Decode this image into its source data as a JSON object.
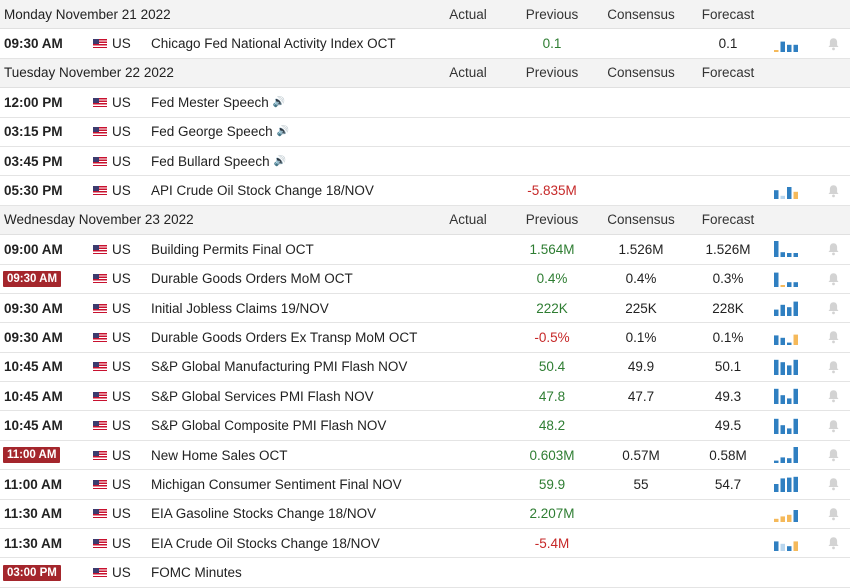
{
  "columns": {
    "actual": "Actual",
    "previous": "Previous",
    "consensus": "Consensus",
    "forecast": "Forecast"
  },
  "colors": {
    "bar_blue": "#2f7fc1",
    "bar_orange": "#f5b95a",
    "bar_light": "#b9d6ee",
    "badge": "#a4262c",
    "positive": "#2e7d32",
    "negative": "#c62828"
  },
  "rows": [
    {
      "kind": "header",
      "date": "Monday November 21 2022"
    },
    {
      "kind": "event",
      "time": "09:30 AM",
      "country": "US",
      "event": "Chicago Fed National Activity Index OCT",
      "previous": "0.1",
      "prev_tone": "pos",
      "forecast": "0.1",
      "bars": [
        0.1,
        0.65,
        0.45,
        0.45
      ],
      "bar_tones": [
        "o",
        "b",
        "b",
        "b"
      ]
    },
    {
      "kind": "header",
      "date": "Tuesday November 22 2022"
    },
    {
      "kind": "event",
      "time": "12:00 PM",
      "country": "US",
      "event": "Fed Mester Speech",
      "speech": true
    },
    {
      "kind": "event",
      "time": "03:15 PM",
      "country": "US",
      "event": "Fed George Speech",
      "speech": true
    },
    {
      "kind": "event",
      "time": "03:45 PM",
      "country": "US",
      "event": "Fed Bullard Speech",
      "speech": true
    },
    {
      "kind": "event",
      "time": "05:30 PM",
      "country": "US",
      "event": "API Crude Oil Stock Change 18/NOV",
      "previous": "-5.835M",
      "prev_tone": "neg",
      "bars": [
        0.55,
        0.2,
        0.75,
        0.45
      ],
      "bar_tones": [
        "b",
        "l",
        "b",
        "o"
      ],
      "bell": true
    },
    {
      "kind": "header",
      "date": "Wednesday November 23 2022"
    },
    {
      "kind": "event",
      "time": "09:00 AM",
      "country": "US",
      "event": "Building Permits Final OCT",
      "previous": "1.564M",
      "prev_tone": "pos",
      "consensus": "1.526M",
      "forecast": "1.526M",
      "bars": [
        1.0,
        0.3,
        0.25,
        0.25
      ],
      "bar_tones": [
        "b",
        "b",
        "b",
        "b"
      ],
      "bell": true
    },
    {
      "kind": "event",
      "time": "09:30 AM",
      "badge": true,
      "country": "US",
      "event": "Durable Goods Orders MoM OCT",
      "previous": "0.4%",
      "prev_tone": "pos",
      "consensus": "0.4%",
      "forecast": "0.3%",
      "bars": [
        0.9,
        0.1,
        0.3,
        0.3
      ],
      "bar_tones": [
        "b",
        "o",
        "b",
        "b"
      ],
      "bell": true
    },
    {
      "kind": "event",
      "time": "09:30 AM",
      "country": "US",
      "event": "Initial Jobless Claims 19/NOV",
      "previous": "222K",
      "prev_tone": "pos",
      "consensus": "225K",
      "forecast": "228K",
      "bars": [
        0.4,
        0.7,
        0.55,
        0.9
      ],
      "bar_tones": [
        "b",
        "b",
        "b",
        "b"
      ],
      "bell": true
    },
    {
      "kind": "event",
      "time": "09:30 AM",
      "country": "US",
      "event": "Durable Goods Orders Ex Transp MoM OCT",
      "previous": "-0.5%",
      "prev_tone": "neg",
      "consensus": "0.1%",
      "forecast": "0.1%",
      "bars": [
        0.6,
        0.45,
        0.15,
        0.65
      ],
      "bar_tones": [
        "b",
        "b",
        "b",
        "o"
      ],
      "bell": true
    },
    {
      "kind": "event",
      "time": "10:45 AM",
      "country": "US",
      "event": "S&P Global Manufacturing PMI Flash NOV",
      "previous": "50.4",
      "prev_tone": "pos",
      "consensus": "49.9",
      "forecast": "50.1",
      "bars": [
        0.95,
        0.8,
        0.6,
        0.95
      ],
      "bar_tones": [
        "b",
        "b",
        "b",
        "b"
      ],
      "bell": true
    },
    {
      "kind": "event",
      "time": "10:45 AM",
      "country": "US",
      "event": "S&P Global Services PMI Flash NOV",
      "previous": "47.8",
      "prev_tone": "pos",
      "consensus": "47.7",
      "forecast": "49.3",
      "bars": [
        0.95,
        0.55,
        0.35,
        0.95
      ],
      "bar_tones": [
        "b",
        "b",
        "b",
        "b"
      ],
      "bell": true
    },
    {
      "kind": "event",
      "time": "10:45 AM",
      "country": "US",
      "event": "S&P Global Composite PMI Flash NOV",
      "previous": "48.2",
      "prev_tone": "pos",
      "forecast": "49.5",
      "bars": [
        0.95,
        0.55,
        0.35,
        0.95
      ],
      "bar_tones": [
        "b",
        "b",
        "b",
        "b"
      ],
      "bell": true
    },
    {
      "kind": "event",
      "time": "11:00 AM",
      "badge": true,
      "country": "US",
      "event": "New Home Sales OCT",
      "previous": "0.603M",
      "prev_tone": "pos",
      "consensus": "0.57M",
      "forecast": "0.58M",
      "bars": [
        0.15,
        0.35,
        0.3,
        1.0
      ],
      "bar_tones": [
        "b",
        "b",
        "b",
        "b"
      ],
      "bell": true
    },
    {
      "kind": "event",
      "time": "11:00 AM",
      "country": "US",
      "event": "Michigan Consumer Sentiment Final NOV",
      "previous": "59.9",
      "prev_tone": "pos",
      "consensus": "55",
      "forecast": "54.7",
      "bars": [
        0.5,
        0.85,
        0.9,
        0.95
      ],
      "bar_tones": [
        "b",
        "b",
        "b",
        "b"
      ],
      "bell": true
    },
    {
      "kind": "event",
      "time": "11:30 AM",
      "country": "US",
      "event": "EIA Gasoline Stocks Change 18/NOV",
      "previous": "2.207M",
      "prev_tone": "pos",
      "bars": [
        0.2,
        0.35,
        0.45,
        0.75
      ],
      "bar_tones": [
        "o",
        "o",
        "o",
        "b"
      ],
      "bell": true
    },
    {
      "kind": "event",
      "time": "11:30 AM",
      "country": "US",
      "event": "EIA Crude Oil Stocks Change 18/NOV",
      "previous": "-5.4M",
      "prev_tone": "neg",
      "bars": [
        0.6,
        0.45,
        0.3,
        0.6
      ],
      "bar_tones": [
        "b",
        "l",
        "b",
        "o"
      ],
      "bell": true
    },
    {
      "kind": "event",
      "time": "03:00 PM",
      "badge": true,
      "country": "US",
      "event": "FOMC Minutes"
    }
  ]
}
